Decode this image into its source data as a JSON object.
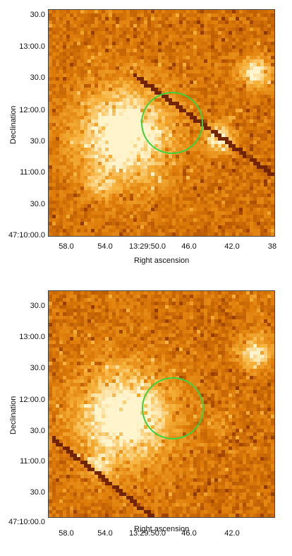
{
  "chart_data": [
    {
      "type": "heatmap",
      "xlabel": "Right ascension",
      "ylabel": "Declination",
      "xticks": [
        "58.0",
        "54.0",
        "13:29:50.0",
        "46.0",
        "42.0",
        "38"
      ],
      "yticks": [
        "30.0",
        "13:00.0",
        "30.0",
        "12:00.0",
        "30.0",
        "11:00.0",
        "30.0",
        "47:10:00.0"
      ],
      "circle": true,
      "colormap": [
        "#6d2200",
        "#a94b00",
        "#df7d0a",
        "#f6b13a",
        "#fff4cc"
      ]
    },
    {
      "type": "heatmap",
      "xlabel": "Right ascension",
      "ylabel": "Declination",
      "xticks": [
        "58.0",
        "54.0",
        "13:29:50.0",
        "46.0",
        "42.0"
      ],
      "yticks": [
        "30.0",
        "13:00.0",
        "30.0",
        "12:00.0",
        "30.0",
        "11:00.0",
        "30.0",
        "47:10:00.0"
      ],
      "circle": true,
      "colormap": [
        "#6d2200",
        "#a94b00",
        "#df7d0a",
        "#f6b13a",
        "#fff4cc"
      ]
    }
  ]
}
